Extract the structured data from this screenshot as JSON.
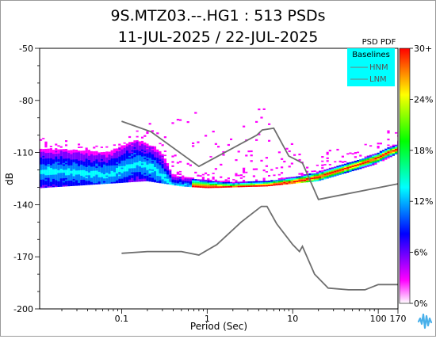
{
  "chart_data": {
    "type": "heatmap",
    "title_line1": "9S.MTZ03.--.HG1 : 513 PSDs",
    "title_line2": "11-JUL-2025 / 22-JUL-2025",
    "xlabel": "Period (Sec)",
    "ylabel": "dB",
    "x_scale": "log",
    "xlim": [
      0.011,
      170
    ],
    "ylim": [
      -200,
      -50
    ],
    "x_ticks": [
      {
        "value": 0.1,
        "label": "0.1"
      },
      {
        "value": 1,
        "label": "1"
      },
      {
        "value": 10,
        "label": "10"
      },
      {
        "value": 100,
        "label": "100"
      },
      {
        "value": 170,
        "label": "170"
      }
    ],
    "y_ticks": [
      {
        "value": -50,
        "label": "-50"
      },
      {
        "value": -80,
        "label": "-80"
      },
      {
        "value": -110,
        "label": "-110"
      },
      {
        "value": -140,
        "label": "-140"
      },
      {
        "value": -170,
        "label": "-170"
      },
      {
        "value": -200,
        "label": "-200"
      }
    ],
    "colorbar": {
      "title": "PSD PDF",
      "range_percent": [
        0,
        30
      ],
      "ticks": [
        {
          "value": 30,
          "label": "30+"
        },
        {
          "value": 24,
          "label": "24%"
        },
        {
          "value": 18,
          "label": "18%"
        },
        {
          "value": 12,
          "label": "12%"
        },
        {
          "value": 6,
          "label": "6%"
        },
        {
          "value": 0,
          "label": "0%"
        }
      ],
      "colors": [
        "#ffffff",
        "#ff00ff",
        "#7f00ff",
        "#0000ff",
        "#0080ff",
        "#00ffff",
        "#00ff80",
        "#00ff00",
        "#80ff00",
        "#ffff00",
        "#ff8000",
        "#ff0000"
      ]
    },
    "legend": {
      "title": "Baselines",
      "placement": "top-right",
      "background": "#00ffff",
      "entries": [
        {
          "label": "HNM",
          "color": "#777777"
        },
        {
          "label": "LNM",
          "color": "#777777"
        }
      ]
    },
    "baselines": [
      {
        "name": "HNM",
        "points": [
          [
            0.1,
            -92
          ],
          [
            0.22,
            -98
          ],
          [
            0.8,
            -118
          ],
          [
            3.8,
            -100
          ],
          [
            4.4,
            -97
          ],
          [
            6,
            -96
          ],
          [
            9,
            -112
          ],
          [
            13,
            -116
          ],
          [
            20,
            -137
          ],
          [
            170,
            -128
          ]
        ]
      },
      {
        "name": "LNM",
        "points": [
          [
            0.1,
            -168
          ],
          [
            0.2,
            -167
          ],
          [
            0.5,
            -167
          ],
          [
            0.8,
            -169
          ],
          [
            1.3,
            -163
          ],
          [
            2.5,
            -150
          ],
          [
            4.3,
            -141
          ],
          [
            5,
            -141
          ],
          [
            6.5,
            -151
          ],
          [
            10,
            -163
          ],
          [
            12,
            -167
          ],
          [
            13,
            -164
          ],
          [
            18,
            -180
          ],
          [
            26,
            -188
          ],
          [
            45,
            -189
          ],
          [
            70,
            -189
          ],
          [
            100,
            -186
          ],
          [
            170,
            -186
          ]
        ]
      }
    ],
    "pdf_band": {
      "mode": [
        [
          0.011,
          -121
        ],
        [
          0.02,
          -121
        ],
        [
          0.04,
          -122
        ],
        [
          0.07,
          -123
        ],
        [
          0.1,
          -120
        ],
        [
          0.15,
          -116
        ],
        [
          0.25,
          -120
        ],
        [
          0.4,
          -129
        ],
        [
          1,
          -130
        ],
        [
          2,
          -130
        ],
        [
          5,
          -129
        ],
        [
          10,
          -127
        ],
        [
          20,
          -124
        ],
        [
          50,
          -118
        ],
        [
          100,
          -113
        ],
        [
          130,
          -110
        ],
        [
          170,
          -108
        ]
      ],
      "spread_db": [
        [
          0.011,
          13
        ],
        [
          0.05,
          13
        ],
        [
          0.1,
          14
        ],
        [
          0.3,
          13
        ],
        [
          0.4,
          6
        ],
        [
          2,
          3
        ],
        [
          20,
          3
        ],
        [
          100,
          3
        ],
        [
          170,
          3
        ]
      ]
    },
    "pdf_scatter_bound_db": {
      "upper": [
        [
          0.011,
          -100
        ],
        [
          0.1,
          -105
        ],
        [
          0.2,
          -90
        ],
        [
          0.5,
          -80
        ],
        [
          1,
          -90
        ],
        [
          3,
          -95
        ],
        [
          5,
          -77
        ],
        [
          8,
          -90
        ],
        [
          15,
          -110
        ],
        [
          40,
          -105
        ],
        [
          100,
          -102
        ],
        [
          170,
          -92
        ]
      ],
      "lower": [
        [
          0.011,
          -130
        ],
        [
          0.2,
          -126
        ],
        [
          0.5,
          -129
        ],
        [
          1,
          -130
        ],
        [
          5,
          -129
        ],
        [
          20,
          -126
        ],
        [
          100,
          -116
        ],
        [
          170,
          -110
        ]
      ]
    }
  },
  "logo": {
    "name": "waveform-logo",
    "color": "#49b0ea"
  }
}
